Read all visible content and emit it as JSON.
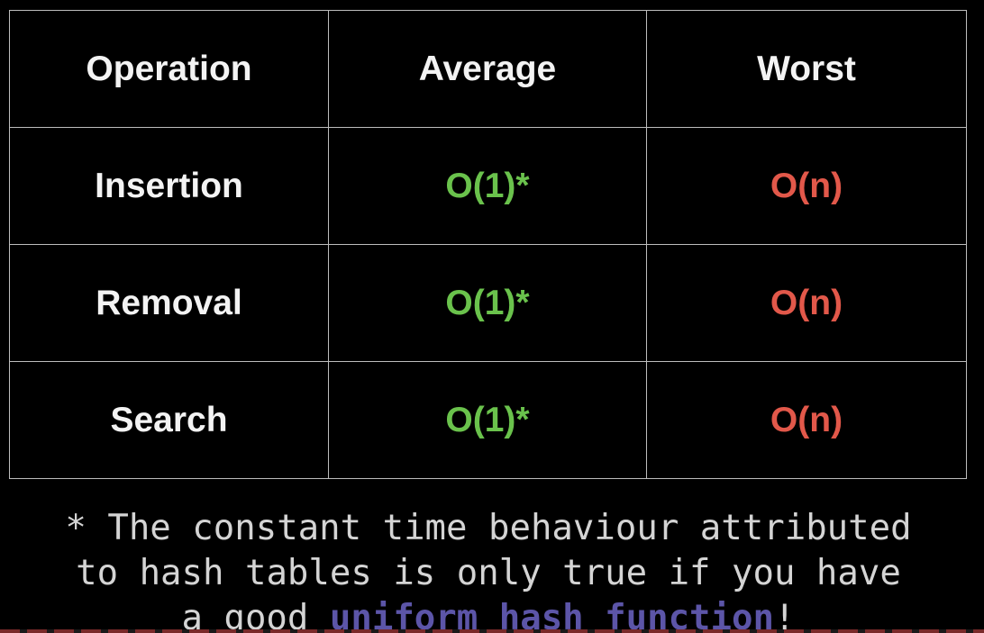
{
  "table": {
    "headers": [
      "Operation",
      "Average",
      "Worst"
    ],
    "rows": [
      {
        "operation": "Insertion",
        "average": "O(1)*",
        "worst": "O(n)"
      },
      {
        "operation": "Removal",
        "average": "O(1)*",
        "worst": "O(n)"
      },
      {
        "operation": "Search",
        "average": "O(1)*",
        "worst": "O(n)"
      }
    ]
  },
  "footnote": {
    "line1": "* The constant time behaviour attributed",
    "line2": "to hash tables is only true if you have",
    "line3_prefix": "a good ",
    "line3_emphasis": "uniform hash function",
    "line3_suffix": "!"
  },
  "colors": {
    "background": "#000000",
    "average": "#6ac24c",
    "worst": "#e2584a",
    "emphasis": "#5c55a8"
  }
}
